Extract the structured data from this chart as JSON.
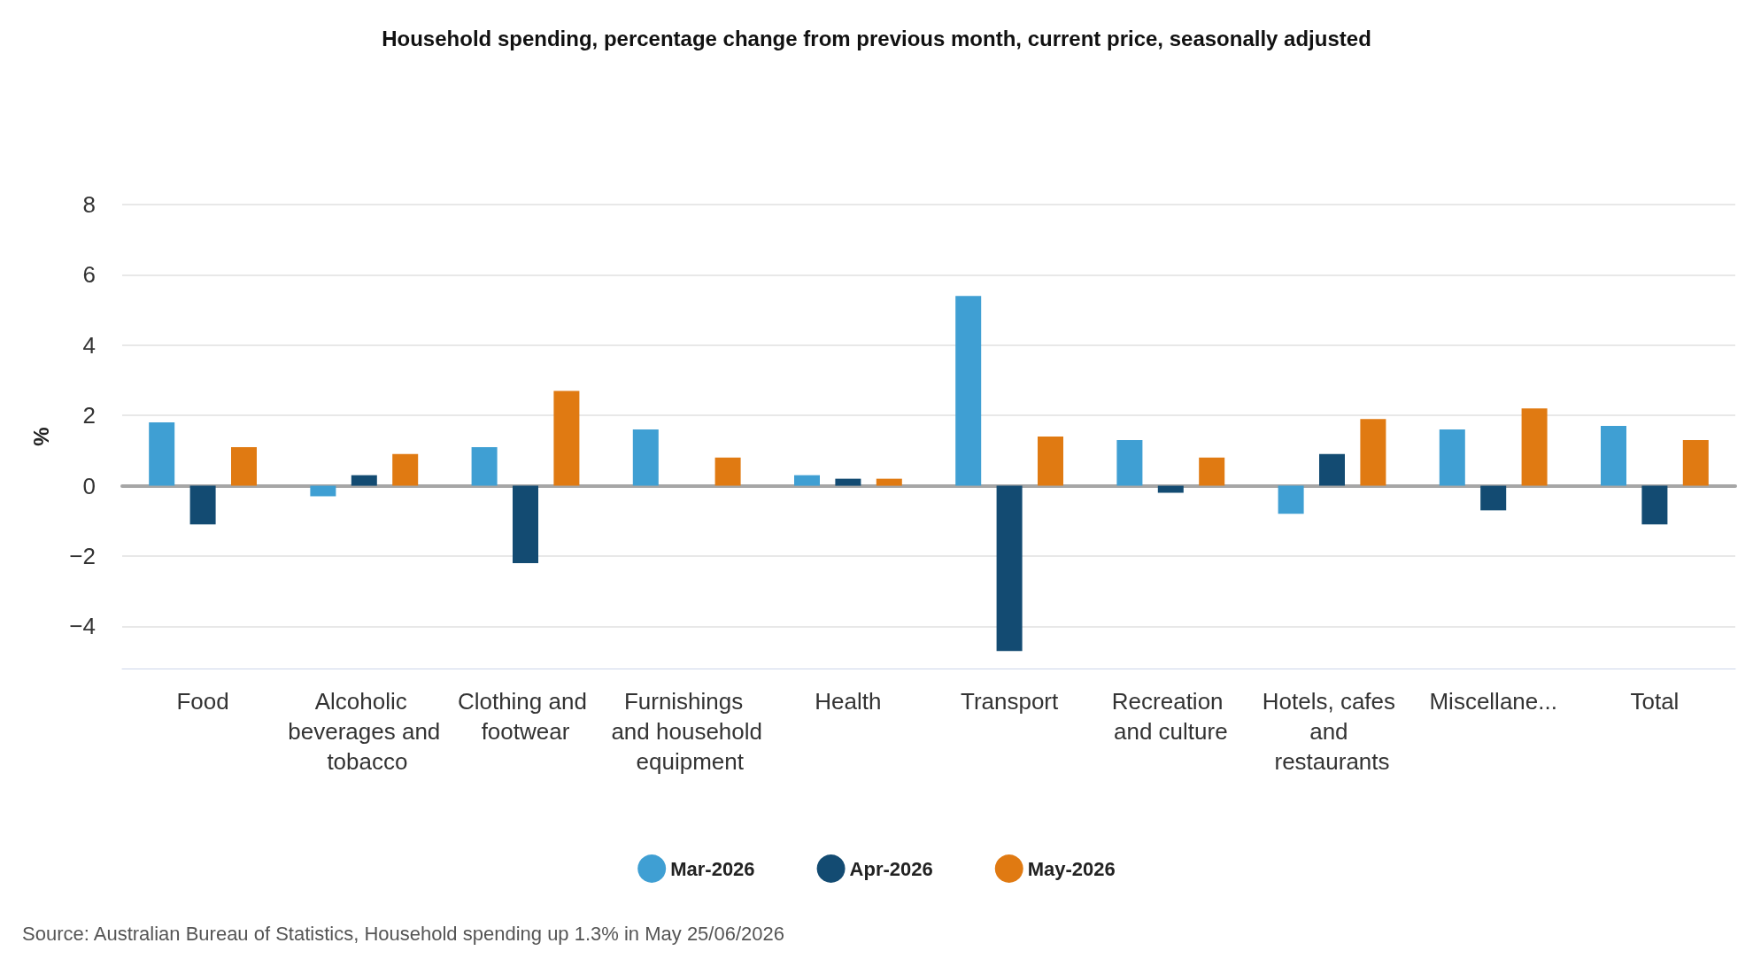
{
  "chart_data": {
    "type": "bar",
    "title": "Household spending, percentage change from previous month, current price, seasonally adjusted",
    "ylabel": "%",
    "categories": [
      "Food",
      "Alcoholic beverages and tobacco",
      "Clothing and footwear",
      "Furnishings and household equipment",
      "Health",
      "Transport",
      "Recreation and culture",
      "Hotels, cafes and restaurants",
      "Miscellane...",
      "Total"
    ],
    "series": [
      {
        "name": "Mar-2026",
        "color": "#3f9fd3",
        "values": [
          1.8,
          -0.3,
          1.1,
          1.6,
          0.3,
          5.4,
          1.3,
          -0.8,
          1.6,
          1.7
        ]
      },
      {
        "name": "Apr-2026",
        "color": "#134b72",
        "values": [
          -1.1,
          0.3,
          -2.2,
          0,
          0.2,
          -4.7,
          -0.2,
          0.9,
          -0.7,
          -1.1
        ]
      },
      {
        "name": "May-2026",
        "color": "#e07a12",
        "values": [
          1.1,
          0.9,
          2.7,
          0.8,
          0.2,
          1.4,
          0.8,
          1.9,
          2.2,
          1.3
        ]
      }
    ],
    "ylim": [
      -5.2,
      8
    ],
    "yticks": [
      -4,
      -2,
      0,
      2,
      4,
      6,
      8
    ],
    "grid": "y",
    "legend": "bottom",
    "annotations": [
      "Source: Australian Bureau of Statistics, Household spending up 1.3% in May 25/06/2026"
    ]
  }
}
